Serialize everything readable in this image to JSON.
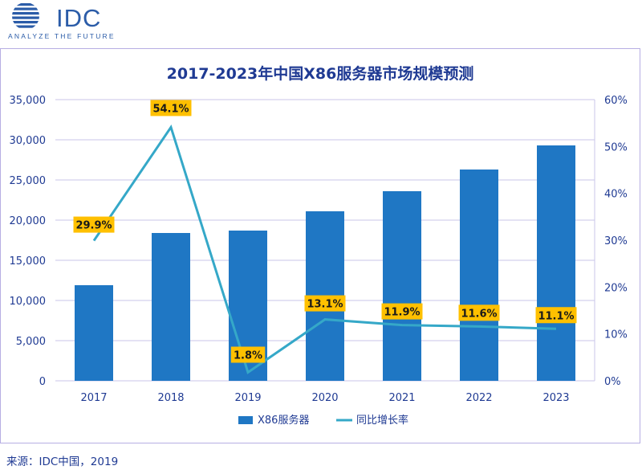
{
  "logo": {
    "name": "IDC",
    "tagline": "ANALYZE THE FUTURE"
  },
  "source": "来源：IDC中国，2019",
  "colors": {
    "bar": "#1f77c4",
    "line": "#35a8c8",
    "label_bg": "#ffc000",
    "axis_text": "#1f3a93",
    "grid": "#c8c6ea",
    "title": "#1f3a93"
  },
  "chart_data": {
    "type": "bar+line",
    "title": "2017-2023年中国X86服务器市场规模预测",
    "categories": [
      "2017",
      "2018",
      "2019",
      "2020",
      "2021",
      "2022",
      "2023"
    ],
    "series": [
      {
        "name": "X86服务器",
        "type": "bar",
        "axis": "left",
        "values": [
          11900,
          18400,
          18700,
          21100,
          23600,
          26300,
          29300
        ]
      },
      {
        "name": "同比增长率",
        "type": "line",
        "axis": "right",
        "values": [
          29.9,
          54.1,
          1.8,
          13.1,
          11.9,
          11.6,
          11.1
        ],
        "labels": [
          "29.9%",
          "54.1%",
          "1.8%",
          "13.1%",
          "11.9%",
          "11.6%",
          "11.1%"
        ]
      }
    ],
    "y_left": {
      "min": 0,
      "max": 35000,
      "ticks": [
        "0",
        "5,000",
        "10,000",
        "15,000",
        "20,000",
        "25,000",
        "30,000",
        "35,000"
      ]
    },
    "y_right": {
      "min": 0,
      "max": 60,
      "ticks": [
        "0%",
        "10%",
        "20%",
        "30%",
        "40%",
        "50%",
        "60%"
      ]
    },
    "legend": [
      "X86服务器",
      "同比增长率"
    ],
    "legend_position": "bottom"
  }
}
